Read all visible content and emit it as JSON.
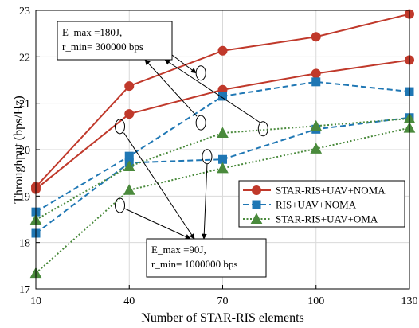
{
  "chart_data": {
    "type": "line",
    "xlabel": "Number of STAR-RIS elements",
    "ylabel": "Throughput (bps/Hz)",
    "x": [
      10,
      40,
      70,
      100,
      130
    ],
    "xlim": [
      10,
      130
    ],
    "ylim": [
      17,
      23
    ],
    "xticks": [
      "10",
      "40",
      "70",
      "100",
      "130"
    ],
    "yticks": [
      "17",
      "18",
      "19",
      "20",
      "21",
      "22",
      "23"
    ],
    "grid": true,
    "legend_position": "center-right",
    "series": [
      {
        "name": "STAR-RIS+UAV+NOMA",
        "group": "E_max =180J, r_min= 300000 bps",
        "values": [
          19.2,
          21.37,
          22.13,
          22.43,
          22.92
        ],
        "color": "#c0392b",
        "dash": "solid",
        "marker": "circle",
        "show_in_legend": true
      },
      {
        "name": "STAR-RIS+UAV+NOMA",
        "group": "E_max =90J, r_min= 1000000 bps",
        "values": [
          19.15,
          20.77,
          21.29,
          21.64,
          21.93
        ],
        "color": "#c0392b",
        "dash": "solid",
        "marker": "circle",
        "show_in_legend": false
      },
      {
        "name": "RIS+UAV+NOMA",
        "group": "E_max =180J, r_min= 300000 bps",
        "values": [
          18.66,
          19.86,
          21.15,
          21.46,
          21.25
        ],
        "color": "#1f77b4",
        "dash": "dashed",
        "marker": "square",
        "show_in_legend": true
      },
      {
        "name": "RIS+UAV+NOMA",
        "group": "E_max =90J, r_min= 1000000 bps",
        "values": [
          18.2,
          19.72,
          19.79,
          20.44,
          20.69
        ],
        "color": "#1f77b4",
        "dash": "dashed",
        "marker": "square",
        "show_in_legend": false
      },
      {
        "name": "STAR-RIS+UAV+OMA",
        "group": "E_max =180J, r_min= 300000 bps",
        "values": [
          18.49,
          19.64,
          20.36,
          20.51,
          20.67
        ],
        "color": "#4a8a3c",
        "dash": "dotted",
        "marker": "triangle",
        "show_in_legend": true
      },
      {
        "name": "STAR-RIS+UAV+OMA",
        "group": "E_max =90J, r_min= 1000000 bps",
        "values": [
          17.34,
          19.13,
          19.6,
          20.02,
          20.47
        ],
        "color": "#4a8a3c",
        "dash": "dotted",
        "marker": "triangle",
        "show_in_legend": false
      }
    ],
    "annotations": [
      {
        "id": "high",
        "lines": [
          "E_max =180J,",
          "r_min= 300000 bps"
        ],
        "position": "top-left"
      },
      {
        "id": "low",
        "lines": [
          "E_max =90J,",
          "r_min= 1000000 bps"
        ],
        "position": "bottom-center"
      }
    ]
  }
}
